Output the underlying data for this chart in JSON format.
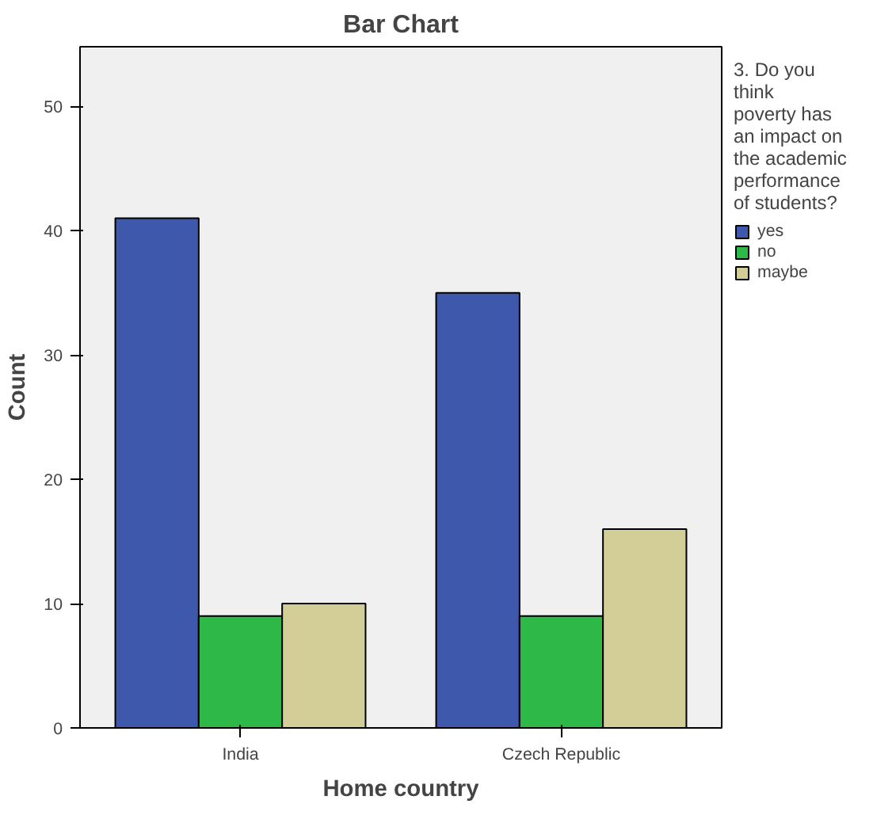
{
  "chart_data": {
    "type": "bar",
    "title": "Bar Chart",
    "xlabel": "Home country",
    "ylabel": "Count",
    "legend_title": "3. Do you think poverty has an impact on the academic performance of students?",
    "categories": [
      "India",
      "Czech Republic"
    ],
    "series": [
      {
        "name": "yes",
        "color": "#3e58ac",
        "values": [
          41,
          35
        ]
      },
      {
        "name": "no",
        "color": "#2eb848",
        "values": [
          9,
          9
        ]
      },
      {
        "name": "maybe",
        "color": "#d3ce97",
        "values": [
          10,
          16
        ]
      }
    ],
    "ylim": [
      0,
      54.8
    ],
    "yticks": [
      0,
      10,
      20,
      30,
      40,
      50
    ],
    "grid": false,
    "legend": "right"
  }
}
